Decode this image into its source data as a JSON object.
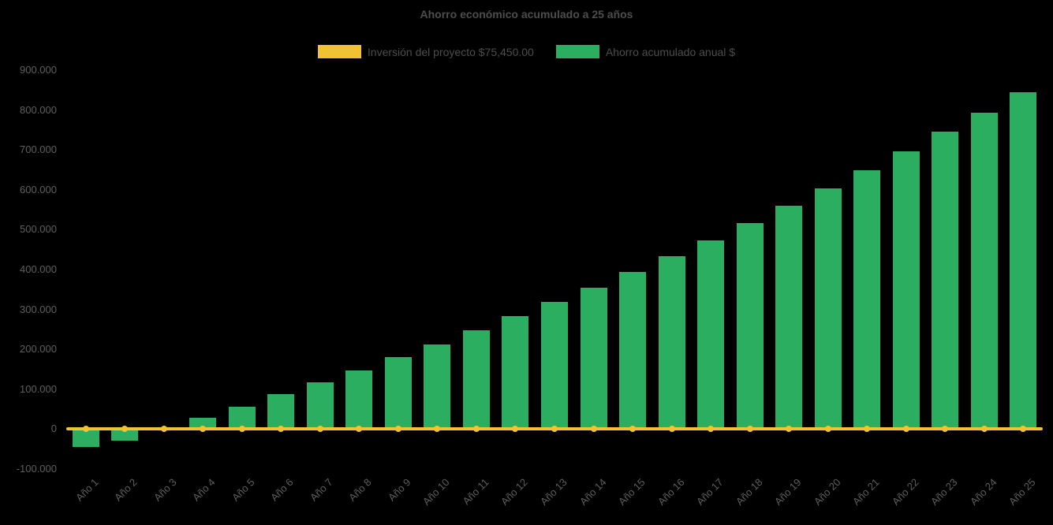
{
  "title": "Ahorro económico acumulado a 25 años",
  "colors": {
    "background": "#000000",
    "bar": "#2bae60",
    "line": "#f1c232",
    "title_text": "#4d4d4d",
    "axis_text": "#5f5f5f"
  },
  "legend": {
    "items": [
      {
        "label": "Inversión del proyecto $75,450.00",
        "color": "#f1c232",
        "series": "line"
      },
      {
        "label": "Ahorro acumulado anual $",
        "color": "#2bae60",
        "series": "bar"
      }
    ]
  },
  "chart_data": {
    "type": "bar",
    "title": "Ahorro económico acumulado a 25 años",
    "categories": [
      "Año 1",
      "Año 2",
      "Año 3",
      "Año 4",
      "Año 5",
      "Año 6",
      "Año 7",
      "Año 8",
      "Año 9",
      "Año 10",
      "Año 11",
      "Año 12",
      "Año 13",
      "Año 14",
      "Año 15",
      "Año 16",
      "Año 17",
      "Año 18",
      "Año 19",
      "Año 20",
      "Año 21",
      "Año 22",
      "Año 23",
      "Año 24",
      "Año 25"
    ],
    "series": [
      {
        "name": "Inversión del proyecto $75,450.00",
        "type": "line",
        "color": "#f1c232",
        "values": [
          0,
          0,
          0,
          0,
          0,
          0,
          0,
          0,
          0,
          0,
          0,
          0,
          0,
          0,
          0,
          0,
          0,
          0,
          0,
          0,
          0,
          0,
          0,
          0,
          0
        ]
      },
      {
        "name": "Ahorro acumulado anual $",
        "type": "bar",
        "color": "#2bae60",
        "values": [
          -45000,
          -28000,
          -3000,
          28000,
          57000,
          88000,
          118000,
          148000,
          181000,
          213000,
          248000,
          283000,
          318000,
          355000,
          394000,
          434000,
          474000,
          516000,
          560000,
          604000,
          650000,
          697000,
          745000,
          794000,
          845000
        ]
      }
    ],
    "ylim": [
      -100000,
      900000
    ],
    "yticks": {
      "values": [
        900000,
        800000,
        700000,
        600000,
        500000,
        400000,
        300000,
        200000,
        100000,
        0,
        -100000
      ],
      "labels": [
        "900.000",
        "800.000",
        "700.000",
        "600.000",
        "500.000",
        "400.000",
        "300.000",
        "200.000",
        "100.000",
        "0",
        "-100.000"
      ]
    },
    "grid": false,
    "legend_position": "top"
  }
}
